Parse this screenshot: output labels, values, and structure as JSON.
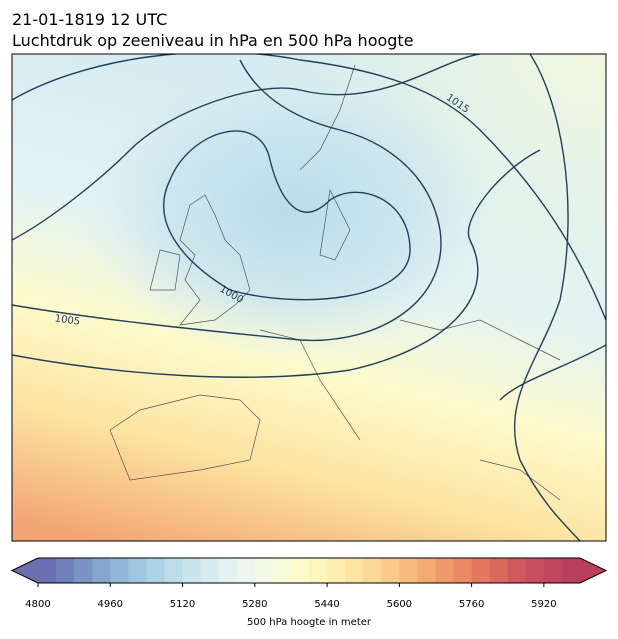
{
  "header": {
    "date": "21-01-1819 12 UTC",
    "title": "Luchtdruk op zeeniveau in hPa en 500 hPa hoogte"
  },
  "map": {
    "contour_labels": [
      1015,
      1000,
      1005
    ]
  },
  "colorbar": {
    "lim": [
      4800,
      6000
    ],
    "ticks": [
      4800,
      4960,
      5120,
      5280,
      5440,
      5600,
      5760,
      5920
    ],
    "label": "500 hPa hoogte in meter",
    "colors": [
      "#6b6fb1",
      "#7080bb",
      "#7a93c4",
      "#85a5cc",
      "#92b6d6",
      "#a0c6df",
      "#aed3e6",
      "#bcdcea",
      "#c9e4ee",
      "#d6ecf2",
      "#e2f2f3",
      "#ecf6ee",
      "#f3f9e4",
      "#f8fbd8",
      "#fdfbcc",
      "#fef5bd",
      "#feeeb0",
      "#fde4a2",
      "#fbd895",
      "#f9ca88",
      "#f6bb7d",
      "#f3ab72",
      "#ef9a6a",
      "#ea8964",
      "#e3785f",
      "#db685d",
      "#d1595c",
      "#c84e5d",
      "#c1455f",
      "#b83f5e"
    ]
  }
}
